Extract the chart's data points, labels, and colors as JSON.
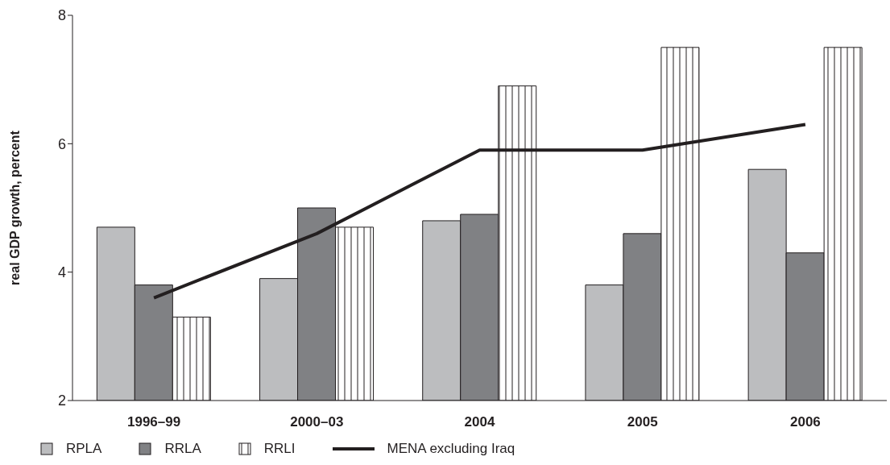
{
  "chart_data": {
    "type": "bar",
    "ylabel": "real GDP growth, percent",
    "categories": [
      "1996–99",
      "2000–03",
      "2004",
      "2005",
      "2006"
    ],
    "series": [
      {
        "name": "RPLA",
        "color": "#bcbdbf",
        "values": [
          4.7,
          3.9,
          4.8,
          3.8,
          5.6
        ]
      },
      {
        "name": "RRLA",
        "color": "#808184",
        "values": [
          3.8,
          5.0,
          4.9,
          4.6,
          4.3
        ]
      },
      {
        "name": "RRLI",
        "color": "#231f20",
        "values": [
          3.3,
          4.7,
          6.9,
          7.5,
          7.5
        ]
      },
      {
        "name": "MENA excluding Iraq",
        "type": "line",
        "color": "#231f20",
        "values": [
          3.6,
          4.6,
          5.9,
          5.9,
          6.3
        ]
      }
    ],
    "ylim": [
      2,
      8
    ],
    "yticks": [
      2,
      4,
      6,
      8
    ],
    "grid": false,
    "legend": "bottom left",
    "marker": "none"
  }
}
